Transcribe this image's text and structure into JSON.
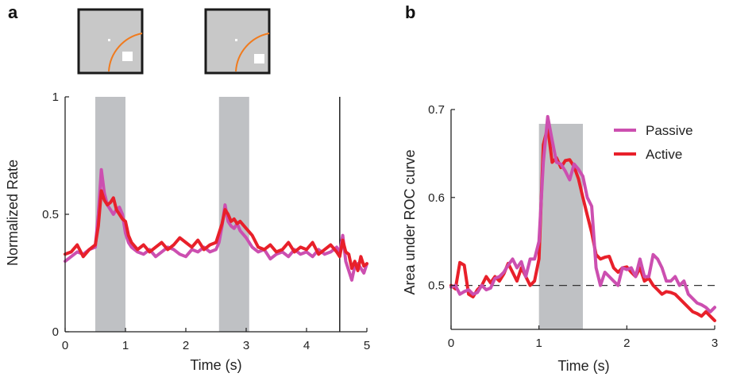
{
  "panels": {
    "a_label": "a",
    "b_label": "b"
  },
  "colors": {
    "passive": "#cc4fb0",
    "active": "#e8202a",
    "shade": "#bfc1c4",
    "stimulus_bg": "#c8c8c8",
    "arc": "#f07b1e"
  },
  "legend": {
    "passive": "Passive",
    "active": "Active"
  },
  "stimulus_icons": {
    "count": 2,
    "contents": [
      "fixation-dot",
      "orange-arc",
      "white-square"
    ]
  },
  "chart_data": [
    {
      "type": "line",
      "panel": "a",
      "title": "",
      "xlabel": "Time (s)",
      "ylabel": "Normalized Rate",
      "xlim": [
        0,
        5
      ],
      "ylim": [
        0,
        1
      ],
      "xticks": [
        "0",
        "1",
        "2",
        "3",
        "4",
        "5"
      ],
      "xtick_values": [
        0,
        1,
        2,
        3,
        4,
        5
      ],
      "yticks": [
        "0",
        "0.5",
        "1"
      ],
      "ytick_values": [
        0,
        0.5,
        1
      ],
      "shaded_intervals": [
        [
          0.5,
          1.0
        ],
        [
          2.55,
          3.05
        ]
      ],
      "vertical_lines": [
        4.55
      ],
      "grid": false,
      "x": [
        0,
        0.1,
        0.2,
        0.3,
        0.4,
        0.5,
        0.55,
        0.6,
        0.65,
        0.7,
        0.75,
        0.8,
        0.85,
        0.9,
        0.95,
        1.0,
        1.05,
        1.1,
        1.2,
        1.3,
        1.4,
        1.5,
        1.6,
        1.7,
        1.8,
        1.9,
        2.0,
        2.1,
        2.2,
        2.3,
        2.4,
        2.5,
        2.55,
        2.6,
        2.65,
        2.7,
        2.75,
        2.8,
        2.85,
        2.9,
        3.0,
        3.1,
        3.2,
        3.3,
        3.4,
        3.5,
        3.6,
        3.7,
        3.8,
        3.9,
        4.0,
        4.1,
        4.2,
        4.3,
        4.4,
        4.5,
        4.55,
        4.6,
        4.65,
        4.7,
        4.75,
        4.8,
        4.85,
        4.9,
        4.95,
        5.0
      ],
      "series": [
        {
          "name": "Active",
          "values": [
            0.33,
            0.34,
            0.37,
            0.32,
            0.35,
            0.37,
            0.45,
            0.6,
            0.56,
            0.54,
            0.55,
            0.57,
            0.52,
            0.5,
            0.48,
            0.47,
            0.41,
            0.38,
            0.35,
            0.37,
            0.34,
            0.36,
            0.38,
            0.35,
            0.37,
            0.4,
            0.38,
            0.36,
            0.39,
            0.35,
            0.37,
            0.38,
            0.42,
            0.46,
            0.52,
            0.5,
            0.47,
            0.48,
            0.46,
            0.47,
            0.44,
            0.41,
            0.36,
            0.35,
            0.37,
            0.34,
            0.35,
            0.38,
            0.34,
            0.36,
            0.35,
            0.38,
            0.33,
            0.35,
            0.37,
            0.34,
            0.32,
            0.39,
            0.34,
            0.33,
            0.27,
            0.3,
            0.26,
            0.32,
            0.28,
            0.29
          ]
        },
        {
          "name": "Passive",
          "values": [
            0.3,
            0.32,
            0.34,
            0.33,
            0.35,
            0.36,
            0.5,
            0.69,
            0.59,
            0.54,
            0.52,
            0.5,
            0.52,
            0.53,
            0.5,
            0.42,
            0.38,
            0.36,
            0.34,
            0.33,
            0.35,
            0.32,
            0.34,
            0.36,
            0.35,
            0.33,
            0.32,
            0.35,
            0.34,
            0.36,
            0.34,
            0.35,
            0.38,
            0.45,
            0.54,
            0.47,
            0.45,
            0.44,
            0.46,
            0.43,
            0.4,
            0.36,
            0.34,
            0.35,
            0.31,
            0.33,
            0.34,
            0.32,
            0.35,
            0.33,
            0.34,
            0.32,
            0.35,
            0.33,
            0.34,
            0.36,
            0.34,
            0.41,
            0.3,
            0.26,
            0.22,
            0.28,
            0.29,
            0.27,
            0.25,
            0.29
          ]
        }
      ]
    },
    {
      "type": "line",
      "panel": "b",
      "title": "",
      "xlabel": "Time (s)",
      "ylabel": "Area under ROC curve",
      "xlim": [
        0,
        3
      ],
      "ylim": [
        0.45,
        0.7
      ],
      "xticks": [
        "0",
        "1",
        "2",
        "3"
      ],
      "xtick_values": [
        0,
        1,
        2,
        3
      ],
      "yticks": [
        "0.5",
        "0.6",
        "0.7"
      ],
      "ytick_values": [
        0.5,
        0.6,
        0.7
      ],
      "shaded_intervals": [
        [
          1.0,
          1.5
        ]
      ],
      "reference_line": 0.5,
      "legend_position": "top-right",
      "grid": false,
      "x": [
        0,
        0.05,
        0.1,
        0.15,
        0.2,
        0.25,
        0.3,
        0.35,
        0.4,
        0.45,
        0.5,
        0.55,
        0.6,
        0.65,
        0.7,
        0.75,
        0.8,
        0.85,
        0.9,
        0.95,
        1.0,
        1.05,
        1.1,
        1.15,
        1.2,
        1.25,
        1.3,
        1.35,
        1.4,
        1.45,
        1.5,
        1.55,
        1.6,
        1.65,
        1.7,
        1.75,
        1.8,
        1.85,
        1.9,
        1.95,
        2.0,
        2.05,
        2.1,
        2.15,
        2.2,
        2.25,
        2.3,
        2.35,
        2.4,
        2.45,
        2.5,
        2.55,
        2.6,
        2.65,
        2.7,
        2.75,
        2.8,
        2.85,
        2.9,
        2.95,
        3.0
      ],
      "series": [
        {
          "name": "Active",
          "values": [
            0.5,
            0.496,
            0.526,
            0.523,
            0.49,
            0.487,
            0.495,
            0.5,
            0.51,
            0.503,
            0.51,
            0.505,
            0.513,
            0.525,
            0.515,
            0.505,
            0.52,
            0.51,
            0.5,
            0.505,
            0.53,
            0.66,
            0.68,
            0.64,
            0.645,
            0.634,
            0.642,
            0.643,
            0.635,
            0.621,
            0.6,
            0.58,
            0.56,
            0.535,
            0.53,
            0.532,
            0.533,
            0.52,
            0.515,
            0.52,
            0.521,
            0.515,
            0.51,
            0.52,
            0.505,
            0.508,
            0.5,
            0.495,
            0.49,
            0.493,
            0.492,
            0.49,
            0.485,
            0.48,
            0.475,
            0.47,
            0.468,
            0.465,
            0.47,
            0.465,
            0.46
          ]
        },
        {
          "name": "Passive",
          "values": [
            0.498,
            0.5,
            0.49,
            0.493,
            0.495,
            0.49,
            0.492,
            0.5,
            0.495,
            0.497,
            0.508,
            0.51,
            0.515,
            0.523,
            0.53,
            0.52,
            0.527,
            0.51,
            0.53,
            0.53,
            0.55,
            0.64,
            0.692,
            0.665,
            0.64,
            0.638,
            0.63,
            0.62,
            0.638,
            0.632,
            0.624,
            0.6,
            0.59,
            0.52,
            0.5,
            0.515,
            0.51,
            0.505,
            0.5,
            0.52,
            0.518,
            0.52,
            0.51,
            0.53,
            0.51,
            0.51,
            0.535,
            0.53,
            0.52,
            0.505,
            0.505,
            0.51,
            0.5,
            0.505,
            0.49,
            0.485,
            0.48,
            0.478,
            0.475,
            0.47,
            0.475
          ]
        }
      ]
    }
  ]
}
